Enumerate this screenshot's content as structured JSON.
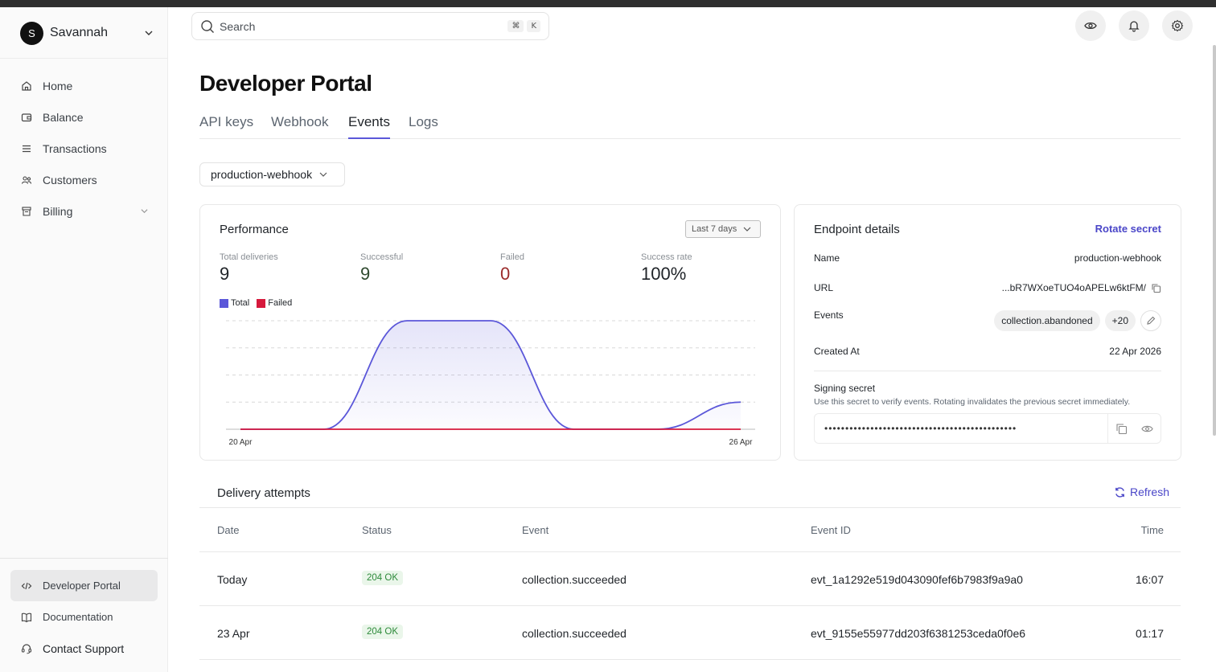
{
  "user": {
    "initial": "S",
    "name": "Savannah"
  },
  "nav": {
    "items": [
      {
        "label": "Home",
        "icon": "home-icon"
      },
      {
        "label": "Balance",
        "icon": "wallet-icon"
      },
      {
        "label": "Transactions",
        "icon": "list-icon"
      },
      {
        "label": "Customers",
        "icon": "users-icon"
      },
      {
        "label": "Billing",
        "icon": "billing-icon"
      }
    ],
    "bottom": [
      {
        "label": "Developer Portal",
        "icon": "code-icon"
      },
      {
        "label": "Documentation",
        "icon": "book-icon"
      },
      {
        "label": "Contact Support",
        "icon": "support-icon"
      }
    ]
  },
  "search": {
    "placeholder": "Search",
    "shortcut": [
      "⌘",
      "K"
    ]
  },
  "page": {
    "title": "Developer Portal"
  },
  "tabs": [
    {
      "label": "API keys"
    },
    {
      "label": "Webhook"
    },
    {
      "label": "Events",
      "active": true
    },
    {
      "label": "Logs"
    }
  ],
  "webhook_select": {
    "value": "production-webhook"
  },
  "performance": {
    "title": "Performance",
    "range": "Last 7 days",
    "stats": [
      {
        "label": "Total deliveries",
        "value": "9"
      },
      {
        "label": "Successful",
        "value": "9"
      },
      {
        "label": "Failed",
        "value": "0"
      },
      {
        "label": "Success rate",
        "value": "100%"
      }
    ],
    "legend": [
      {
        "name": "Total",
        "color": "#5b57d9"
      },
      {
        "name": "Failed",
        "color": "#d6193c"
      }
    ]
  },
  "chart_data": {
    "type": "area",
    "x_tick_labels": [
      "20 Apr",
      "26 Apr"
    ],
    "x": [
      "20 Apr",
      "21 Apr",
      "22 Apr",
      "23 Apr",
      "24 Apr",
      "25 Apr",
      "26 Apr"
    ],
    "series": [
      {
        "name": "Total",
        "values": [
          0,
          0,
          4,
          4,
          0,
          0,
          1
        ]
      },
      {
        "name": "Failed",
        "values": [
          0,
          0,
          0,
          0,
          0,
          0,
          0
        ]
      }
    ],
    "ylim": [
      0,
      4
    ],
    "grid": true,
    "legend": "top-left"
  },
  "endpoint": {
    "title": "Endpoint details",
    "rotate_label": "Rotate secret",
    "name_label": "Name",
    "name_value": "production-webhook",
    "url_label": "URL",
    "url_value": "...bR7WXoeTUO4oAPELw6ktFM/",
    "events_label": "Events",
    "events_chip": "collection.abandoned",
    "events_more": "+20",
    "created_label": "Created At",
    "created_value": "22 Apr 2026",
    "signing_title": "Signing secret",
    "signing_desc": "Use this secret to verify events. Rotating invalidates the previous secret immediately.",
    "secret_masked": "••••••••••••••••••••••••••••••••••••••••••••••"
  },
  "delivery": {
    "title": "Delivery attempts",
    "refresh_label": "Refresh",
    "columns": [
      "Date",
      "Status",
      "Event",
      "Event ID",
      "Time"
    ],
    "rows": [
      {
        "date": "Today",
        "status": "204 OK",
        "event": "collection.succeeded",
        "event_id": "evt_1a1292e519d043090fef6b7983f9a9a0",
        "time": "16:07"
      },
      {
        "date": "23 Apr",
        "status": "204 OK",
        "event": "collection.succeeded",
        "event_id": "evt_9155e55977dd203f6381253ceda0f0e6",
        "time": "01:17"
      }
    ]
  },
  "colors": {
    "accent": "#5b57d9",
    "failed": "#d6193c",
    "success_badge_bg": "#eaf6ea",
    "success_badge_text": "#2d8a3a"
  }
}
